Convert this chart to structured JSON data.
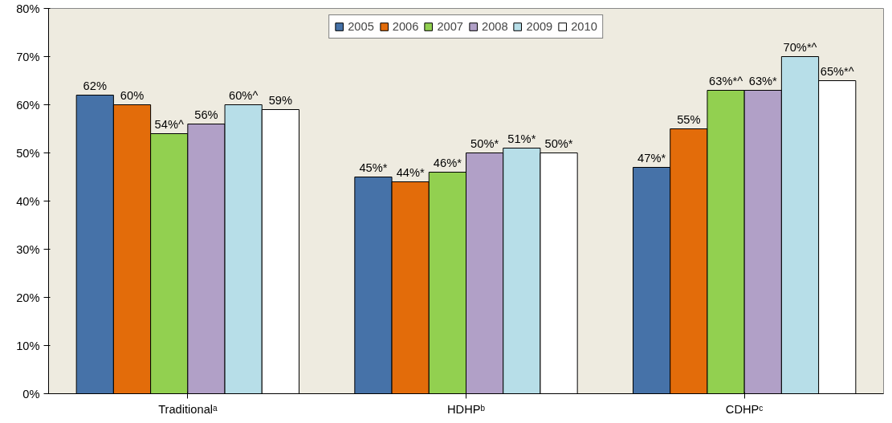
{
  "chart_data": {
    "type": "bar",
    "categories": [
      "Traditionalᵃ",
      "HDHPᵇ",
      "CDHPᶜ"
    ],
    "series": [
      {
        "name": "2005",
        "color": "#4672a8",
        "values": [
          62,
          45,
          47
        ],
        "value_labels": [
          "62%",
          "45%*",
          "47%*"
        ]
      },
      {
        "name": "2006",
        "color": "#e36c0a",
        "values": [
          60,
          44,
          55
        ],
        "value_labels": [
          "60%",
          "44%*",
          "55%"
        ]
      },
      {
        "name": "2007",
        "color": "#92d050",
        "values": [
          54,
          46,
          63
        ],
        "value_labels": [
          "54%^",
          "46%*",
          "63%*^"
        ]
      },
      {
        "name": "2008",
        "color": "#b1a0c7",
        "values": [
          56,
          50,
          63
        ],
        "value_labels": [
          "56%",
          "50%*",
          "63%*"
        ]
      },
      {
        "name": "2009",
        "color": "#b7dee8",
        "values": [
          60,
          51,
          70
        ],
        "value_labels": [
          "60%^",
          "51%*",
          "70%*^"
        ]
      },
      {
        "name": "2010",
        "color": "#ffffff",
        "values": [
          59,
          50,
          65
        ],
        "value_labels": [
          "59%",
          "50%*",
          "65%*^"
        ]
      }
    ],
    "ylim": [
      0,
      80
    ],
    "yticks": [
      {
        "value": 0,
        "label": "0%"
      },
      {
        "value": 10,
        "label": "10%"
      },
      {
        "value": 20,
        "label": "20%"
      },
      {
        "value": 30,
        "label": "30%"
      },
      {
        "value": 40,
        "label": "40%"
      },
      {
        "value": 50,
        "label": "50%"
      },
      {
        "value": 60,
        "label": "60%"
      },
      {
        "value": 70,
        "label": "70%"
      },
      {
        "value": 80,
        "label": "80%"
      }
    ],
    "grid": false,
    "legend": "top"
  }
}
